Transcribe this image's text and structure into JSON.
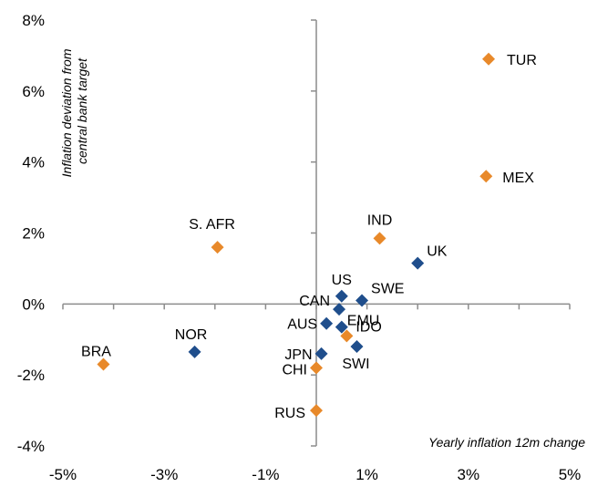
{
  "chart_data": {
    "type": "scatter",
    "xlabel": "Yearly inflation 12m change",
    "ylabel_lines": [
      "Inflation deviation from",
      "central bank target"
    ],
    "xlim": [
      -5,
      5
    ],
    "ylim": [
      -4,
      8
    ],
    "x_ticks": [
      -5,
      -3,
      -1,
      1,
      3,
      5
    ],
    "x_tick_labels": [
      "-5%",
      "-3%",
      "-1%",
      "1%",
      "3%",
      "5%"
    ],
    "y_ticks": [
      -4,
      -2,
      0,
      2,
      4,
      6,
      8
    ],
    "y_tick_labels": [
      "-4%",
      "-2%",
      "0%",
      "2%",
      "4%",
      "6%",
      "8%"
    ],
    "grid": false,
    "series": [
      {
        "color": "#1f4e8c",
        "marker": "diamond",
        "points": [
          {
            "label": "UK",
            "x": 2.0,
            "y": 1.15
          },
          {
            "label": "US",
            "x": 0.5,
            "y": 0.22
          },
          {
            "label": "SWE",
            "x": 0.9,
            "y": 0.1
          },
          {
            "label": "CAN",
            "x": 0.45,
            "y": -0.15
          },
          {
            "label": "AUS",
            "x": 0.2,
            "y": -0.55
          },
          {
            "label": "EMU",
            "x": 0.5,
            "y": -0.65
          },
          {
            "label": "SWI",
            "x": 0.8,
            "y": -1.2
          },
          {
            "label": "JPN",
            "x": 0.1,
            "y": -1.4
          },
          {
            "label": "NOR",
            "x": -2.4,
            "y": -1.35
          }
        ]
      },
      {
        "color": "#e8892a",
        "marker": "diamond",
        "points": [
          {
            "label": "TUR",
            "x": 3.4,
            "y": 6.9
          },
          {
            "label": "MEX",
            "x": 3.35,
            "y": 3.6
          },
          {
            "label": "IND",
            "x": 1.25,
            "y": 1.85
          },
          {
            "label": "S. AFR",
            "x": -1.95,
            "y": 1.6
          },
          {
            "label": "IDO",
            "x": 0.6,
            "y": -0.9
          },
          {
            "label": "CHI",
            "x": 0.0,
            "y": -1.8
          },
          {
            "label": "RUS",
            "x": 0.0,
            "y": -3.0
          },
          {
            "label": "BRA",
            "x": -4.2,
            "y": -1.7
          }
        ]
      }
    ]
  }
}
